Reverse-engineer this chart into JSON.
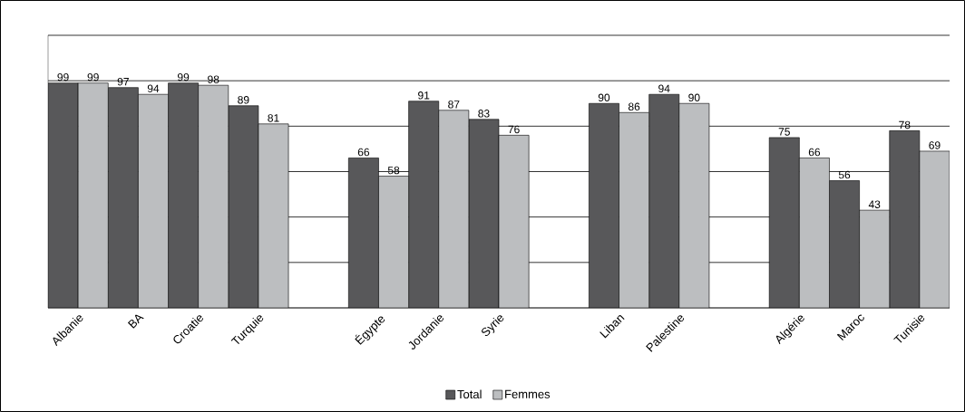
{
  "chart_data": {
    "type": "bar",
    "categories": [
      "Albanie",
      "BA",
      "Croatie",
      "Turquie",
      null,
      "Égypte",
      "Jordanie",
      "Syrie",
      null,
      "Liban",
      "Palestine",
      null,
      "Algérie",
      "Maroc",
      "Tunisie"
    ],
    "series": [
      {
        "name": "Total",
        "color": "#58585a",
        "values": [
          99,
          97,
          99,
          89,
          null,
          66,
          91,
          83,
          null,
          90,
          94,
          null,
          75,
          56,
          78
        ]
      },
      {
        "name": "Femmes",
        "color": "#bcbec0",
        "values": [
          99,
          94,
          98,
          81,
          null,
          58,
          87,
          76,
          null,
          86,
          90,
          null,
          66,
          43,
          69
        ]
      }
    ],
    "ylim": [
      0,
      120
    ],
    "yticks": [
      {
        "value": 0,
        "label": null
      },
      {
        "value": 20,
        "label": null
      },
      {
        "value": 40,
        "label": null
      },
      {
        "value": 60,
        "label": null
      },
      {
        "value": 80,
        "label": null
      },
      {
        "value": 100,
        "label": null
      },
      {
        "value": 120,
        "label": null
      }
    ],
    "grid": "y",
    "legend": "bottom",
    "data_labels": true
  }
}
